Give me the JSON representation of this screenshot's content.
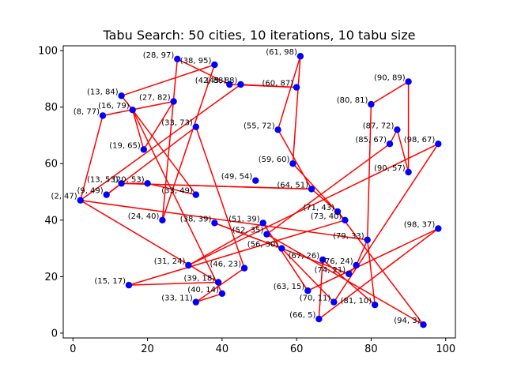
{
  "chart_data": {
    "type": "scatter",
    "title": "Tabu Search: 50 cities, 10 iterations, 10 tabu size",
    "xlabel": "",
    "ylabel": "",
    "xlim": [
      -2.6,
      102.6
    ],
    "ylim": [
      -1.7,
      101.7
    ],
    "x_ticks": [
      "0",
      "20",
      "40",
      "60",
      "80",
      "100"
    ],
    "y_ticks": [
      "0",
      "20",
      "40",
      "60",
      "80",
      "100"
    ],
    "grid": false,
    "point_color": "#0000ff",
    "route_color": "#ff0000",
    "cities": [
      {
        "x": 28,
        "y": 97,
        "label": "(28, 97)"
      },
      {
        "x": 38,
        "y": 95,
        "label": "(38, 95)"
      },
      {
        "x": 61,
        "y": 98,
        "label": "(61, 98)"
      },
      {
        "x": 42,
        "y": 88,
        "label": "(42, 88)"
      },
      {
        "x": 45,
        "y": 88,
        "label": "(45, 88)"
      },
      {
        "x": 60,
        "y": 87,
        "label": "(60, 87)"
      },
      {
        "x": 90,
        "y": 89,
        "label": "(90, 89)"
      },
      {
        "x": 13,
        "y": 84,
        "label": "(13, 84)"
      },
      {
        "x": 27,
        "y": 82,
        "label": "(27, 82)"
      },
      {
        "x": 80,
        "y": 81,
        "label": "(80, 81)"
      },
      {
        "x": 16,
        "y": 79,
        "label": "(16, 79)"
      },
      {
        "x": 8,
        "y": 77,
        "label": "(8, 77)"
      },
      {
        "x": 33,
        "y": 73,
        "label": "(33, 73)"
      },
      {
        "x": 55,
        "y": 72,
        "label": "(55, 72)"
      },
      {
        "x": 87,
        "y": 72,
        "label": "(87, 72)"
      },
      {
        "x": 85,
        "y": 67,
        "label": "(85, 67)"
      },
      {
        "x": 98,
        "y": 67,
        "label": "(98, 67)"
      },
      {
        "x": 19,
        "y": 65,
        "label": "(19, 65)"
      },
      {
        "x": 59,
        "y": 60,
        "label": "(59, 60)"
      },
      {
        "x": 90,
        "y": 57,
        "label": "(90, 57)"
      },
      {
        "x": 49,
        "y": 54,
        "label": "(49, 54)"
      },
      {
        "x": 13,
        "y": 53,
        "label": "(13, 53)"
      },
      {
        "x": 20,
        "y": 53,
        "label": "(20, 53)"
      },
      {
        "x": 64,
        "y": 51,
        "label": "(64, 51)"
      },
      {
        "x": 9,
        "y": 49,
        "label": "(9, 49)"
      },
      {
        "x": 33,
        "y": 49,
        "label": "(33, 49)"
      },
      {
        "x": 2,
        "y": 47,
        "label": "(2, 47)"
      },
      {
        "x": 71,
        "y": 43,
        "label": "(71, 43)"
      },
      {
        "x": 24,
        "y": 40,
        "label": "(24, 40)"
      },
      {
        "x": 73,
        "y": 40,
        "label": "(73, 40)"
      },
      {
        "x": 38,
        "y": 39,
        "label": "(38, 39)"
      },
      {
        "x": 51,
        "y": 39,
        "label": "(51, 39)"
      },
      {
        "x": 98,
        "y": 37,
        "label": "(98, 37)"
      },
      {
        "x": 52,
        "y": 35,
        "label": "(52, 35)"
      },
      {
        "x": 79,
        "y": 33,
        "label": "(79, 33)"
      },
      {
        "x": 56,
        "y": 30,
        "label": "(56, 30)"
      },
      {
        "x": 67,
        "y": 26,
        "label": "(67, 26)"
      },
      {
        "x": 76,
        "y": 24,
        "label": "(76, 24)"
      },
      {
        "x": 31,
        "y": 24,
        "label": "(31, 24)"
      },
      {
        "x": 46,
        "y": 23,
        "label": "(46, 23)"
      },
      {
        "x": 74,
        "y": 21,
        "label": "(74, 21)"
      },
      {
        "x": 39,
        "y": 18,
        "label": "(39, 18)"
      },
      {
        "x": 15,
        "y": 17,
        "label": "(15, 17)"
      },
      {
        "x": 63,
        "y": 15,
        "label": "(63, 15)"
      },
      {
        "x": 40,
        "y": 14,
        "label": "(40, 14)"
      },
      {
        "x": 33,
        "y": 11,
        "label": "(33, 11)"
      },
      {
        "x": 70,
        "y": 11,
        "label": "(70, 11)"
      },
      {
        "x": 81,
        "y": 10,
        "label": "(81, 10)"
      },
      {
        "x": 66,
        "y": 5,
        "label": "(66, 5)"
      },
      {
        "x": 94,
        "y": 3,
        "label": "(94, 3)"
      }
    ],
    "route": [
      [
        2,
        47
      ],
      [
        8,
        77
      ],
      [
        27,
        82
      ],
      [
        19,
        65
      ],
      [
        16,
        79
      ],
      [
        13,
        84
      ],
      [
        38,
        95
      ],
      [
        24,
        40
      ],
      [
        28,
        97
      ],
      [
        42,
        88
      ],
      [
        60,
        87
      ],
      [
        45,
        88
      ],
      [
        2,
        47
      ],
      [
        39,
        18
      ],
      [
        15,
        17
      ],
      [
        73,
        40
      ],
      [
        59,
        60
      ],
      [
        61,
        98
      ],
      [
        55,
        72
      ],
      [
        64,
        51
      ],
      [
        13,
        53
      ],
      [
        9,
        49
      ],
      [
        33,
        73
      ],
      [
        46,
        23
      ],
      [
        33,
        11
      ],
      [
        40,
        14
      ],
      [
        16,
        79
      ],
      [
        33,
        49
      ],
      [
        20,
        53
      ],
      [
        13,
        53
      ],
      [
        64,
        51
      ],
      [
        71,
        43
      ],
      [
        94,
        3
      ],
      [
        52,
        35
      ],
      [
        85,
        67
      ],
      [
        87,
        72
      ],
      [
        90,
        57
      ],
      [
        90,
        89
      ],
      [
        80,
        81
      ],
      [
        79,
        33
      ],
      [
        81,
        10
      ],
      [
        67,
        26
      ],
      [
        66,
        5
      ],
      [
        98,
        37
      ],
      [
        63,
        15
      ],
      [
        51,
        39
      ],
      [
        31,
        24
      ],
      [
        98,
        67
      ],
      [
        70,
        11
      ],
      [
        56,
        30
      ],
      [
        38,
        39
      ],
      [
        74,
        21
      ],
      [
        76,
        24
      ],
      [
        79,
        33
      ],
      [
        2,
        47
      ]
    ]
  }
}
